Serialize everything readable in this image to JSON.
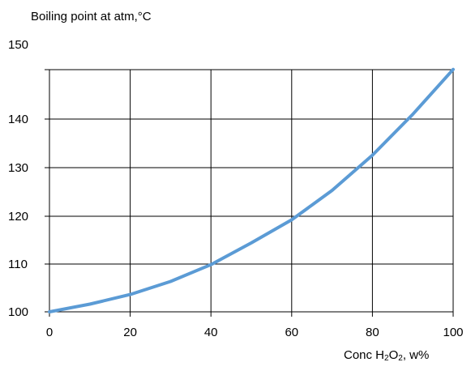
{
  "chart_data": {
    "type": "line",
    "ylabel": "Boiling point at atm,°C",
    "xlabel": {
      "prefix": "Conc H",
      "sub1": "2",
      "mid": "O",
      "sub2": "2",
      "suffix": ", w%"
    },
    "xlim": [
      0,
      100
    ],
    "ylim": [
      100,
      150
    ],
    "xticks": [
      "0",
      "20",
      "40",
      "60",
      "80",
      "100"
    ],
    "yticks": [
      "100",
      "110",
      "120",
      "130",
      "140",
      "150"
    ],
    "grid": true,
    "series": [
      {
        "color": "#5b9bd5",
        "x": [
          0,
          10,
          20,
          30,
          40,
          50,
          60,
          70,
          80,
          90,
          100
        ],
        "y": [
          100,
          101.6,
          103.6,
          106.3,
          109.8,
          114.3,
          119.1,
          125.2,
          132.5,
          141.0,
          150.3
        ]
      }
    ]
  }
}
